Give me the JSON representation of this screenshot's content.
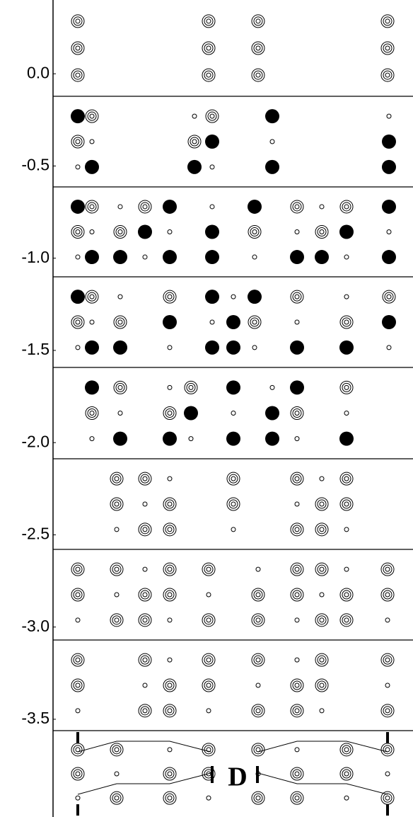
{
  "chart_data": {
    "type": "contour",
    "ylim": [
      -4.03,
      0.4
    ],
    "yticks": [
      {
        "value": 0,
        "label": "0.0"
      },
      -0.5,
      {
        "value": -1,
        "label": "-1.0"
      },
      -1.5,
      {
        "value": -2,
        "label": "-2.0"
      },
      -2.5,
      {
        "value": -3,
        "label": "-3.0"
      },
      -3.5
    ],
    "annotations": [
      "D"
    ]
  }
}
